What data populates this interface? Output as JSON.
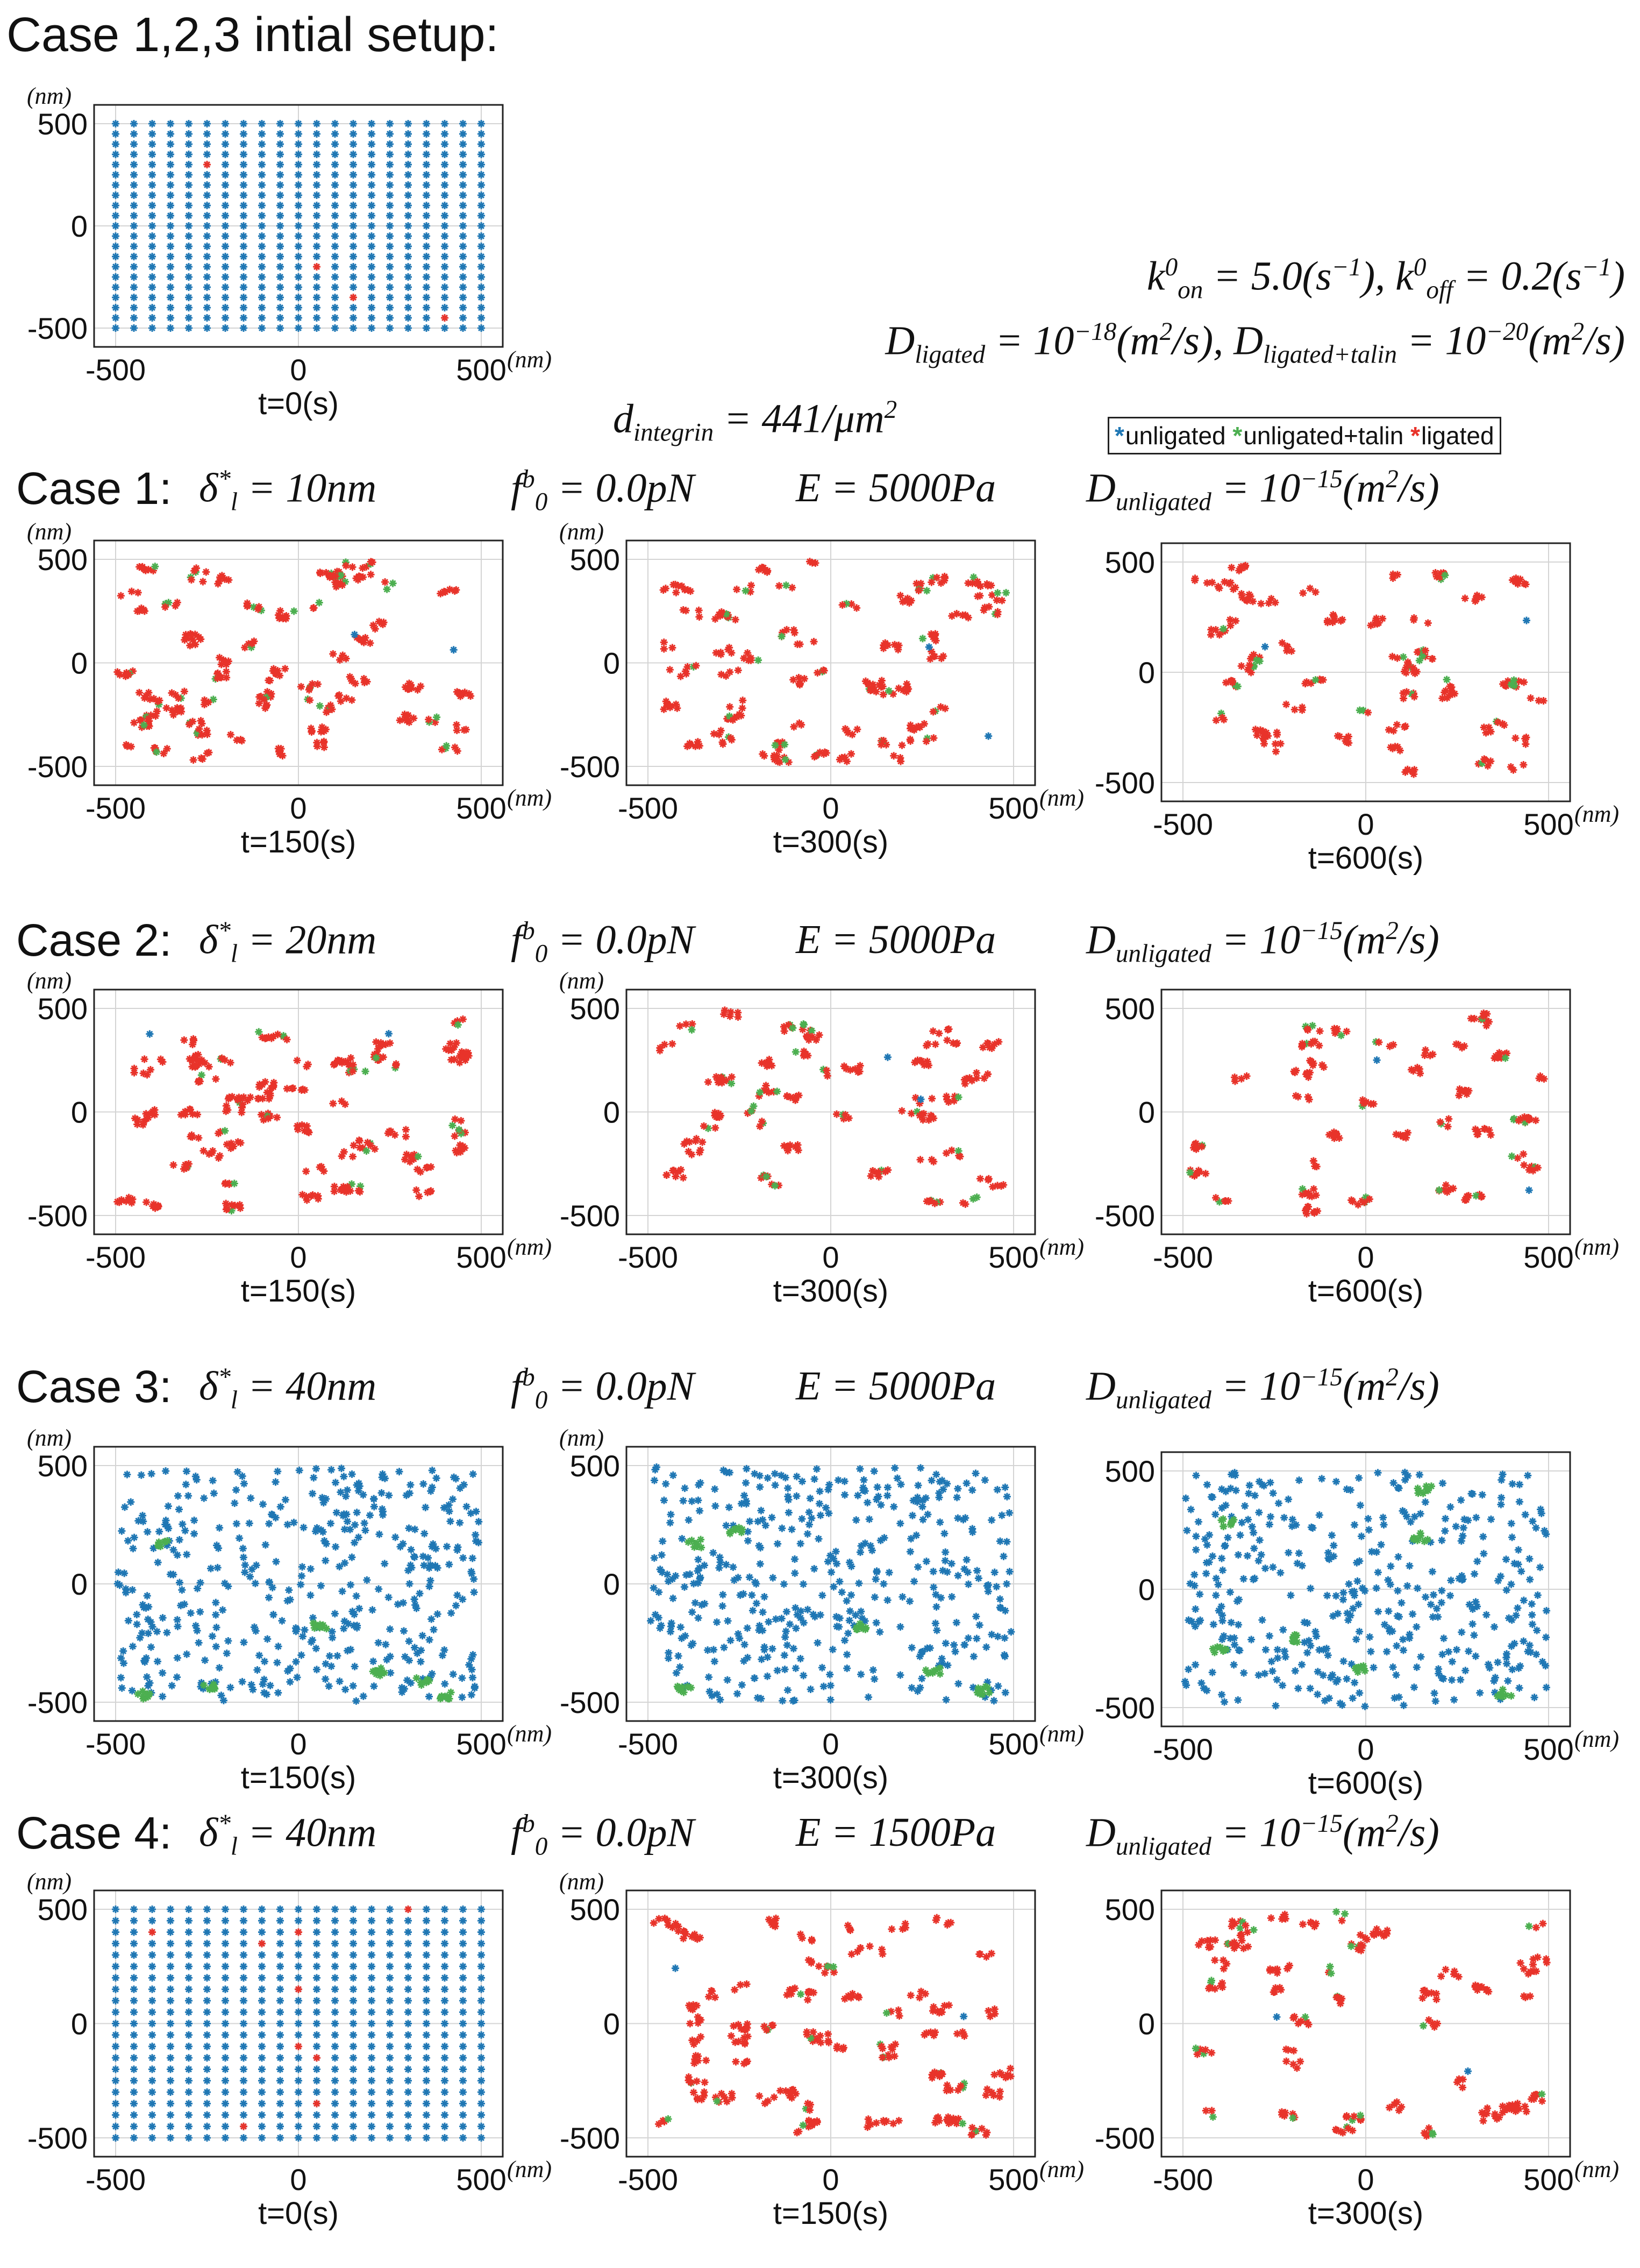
{
  "figure": {
    "title": "Case 1,2,3 intial setup:",
    "params": {
      "rates": {
        "k_on": "k",
        "k_on_sup": "0",
        "k_on_sub": "on",
        "k_on_val": " = 5.0(s",
        "k_on_exp": "−1",
        "k_on_tail": "), ",
        "k_off": "k",
        "k_off_sup": "0",
        "k_off_sub": "off",
        "k_off_val": " = 0.2(s",
        "k_off_exp": "−1",
        "k_off_tail": ")"
      },
      "diffusion": {
        "d_lig": "D",
        "d_lig_sub": "ligated",
        "d_lig_val": " = 10",
        "d_lig_exp": "−18",
        "d_lig_tail": "(m",
        "d_lig_tail_exp": "2",
        "d_lig_tail2": "/s), ",
        "d_lt": "D",
        "d_lt_sub": "ligated+talin",
        "d_lt_val": " = 10",
        "d_lt_exp": "−20",
        "d_lt_tail": "(m",
        "d_lt_tail_exp": "2",
        "d_lt_tail2": "/s)"
      },
      "density": {
        "name": "d",
        "sub": "integrin",
        "val": " = 441/μm",
        "exp": "2"
      }
    },
    "legend": [
      {
        "label": "unligated",
        "color": "#1f77b4",
        "mark": "*"
      },
      {
        "label": "unligated+talin",
        "color": "#4caf50",
        "mark": "*"
      },
      {
        "label": "ligated",
        "color": "#e8332a",
        "mark": "*"
      }
    ],
    "cases": [
      {
        "label": "Case 1:",
        "delta": "δ",
        "delta_sup": "*",
        "delta_sub": "l",
        "delta_val": " = 10nm",
        "f": "f",
        "f_sup": "b",
        "f_sub": "0",
        "f_val": " = 0.0pN",
        "E": "E = 5000Pa",
        "D": "D",
        "D_sub": "unligated",
        "D_val": " = 10",
        "D_exp": "−15",
        "D_tail": "(m",
        "D_tail_exp": "2",
        "D_tail2": "/s)"
      },
      {
        "label": "Case 2:",
        "delta": "δ",
        "delta_sup": "*",
        "delta_sub": "l",
        "delta_val": " = 20nm",
        "f": "f",
        "f_sup": "b",
        "f_sub": "0",
        "f_val": " = 0.0pN",
        "E": "E = 5000Pa",
        "D": "D",
        "D_sub": "unligated",
        "D_val": " = 10",
        "D_exp": "−15",
        "D_tail": "(m",
        "D_tail_exp": "2",
        "D_tail2": "/s)"
      },
      {
        "label": "Case 3:",
        "delta": "δ",
        "delta_sup": "*",
        "delta_sub": "l",
        "delta_val": " = 40nm",
        "f": "f",
        "f_sup": "b",
        "f_sub": "0",
        "f_val": " = 0.0pN",
        "E": "E = 5000Pa",
        "D": "D",
        "D_sub": "unligated",
        "D_val": " = 10",
        "D_exp": "−15",
        "D_tail": "(m",
        "D_tail_exp": "2",
        "D_tail2": "/s)"
      },
      {
        "label": "Case 4:",
        "delta": "δ",
        "delta_sup": "*",
        "delta_sub": "l",
        "delta_val": " = 40nm",
        "f": "f",
        "f_sup": "b",
        "f_sub": "0",
        "f_val": " = 0.0pN",
        "E": "E = 1500Pa",
        "D": "D",
        "D_sub": "unligated",
        "D_val": " = 10",
        "D_exp": "−15",
        "D_tail": "(m",
        "D_tail_exp": "2",
        "D_tail2": "/s)"
      }
    ]
  },
  "chart_data": [
    {
      "type": "scatter",
      "panel": "initial",
      "caption": "t=0(s)",
      "pattern": "grid",
      "xlim": [
        -500,
        500
      ],
      "ylim": [
        -500,
        500
      ],
      "xticks": [
        -500,
        0,
        500
      ],
      "yticks": [
        -500,
        0,
        500
      ],
      "xticklabels": [
        "-500",
        "0",
        "500"
      ],
      "yticklabels": [
        "-500",
        "0",
        "500"
      ],
      "grid": true,
      "xunit": "(nm)",
      "yunit": "(nm)",
      "grid_spacing": 50,
      "ligated_points": [
        [
          -250,
          300
        ],
        [
          50,
          -200
        ],
        [
          150,
          -350
        ],
        [
          400,
          -450
        ]
      ],
      "seed": 11
    },
    {
      "type": "scatter",
      "panel": "case1-t150",
      "caption": "t=150(s)",
      "pattern": "clusters-red",
      "xlim": [
        -500,
        500
      ],
      "ylim": [
        -500,
        500
      ],
      "xticks": [
        -500,
        0,
        500
      ],
      "yticks": [
        -500,
        0,
        500
      ],
      "xticklabels": [
        "-500",
        "0",
        "500"
      ],
      "yticklabels": [
        "-500",
        "0",
        "500"
      ],
      "grid": true,
      "xunit": "(nm)",
      "yunit": "(nm)",
      "clusters": 60,
      "seed": 101
    },
    {
      "type": "scatter",
      "panel": "case1-t300",
      "caption": "t=300(s)",
      "pattern": "clusters-red",
      "xlim": [
        -500,
        500
      ],
      "ylim": [
        -500,
        500
      ],
      "xticks": [
        -500,
        0,
        500
      ],
      "yticks": [
        -500,
        0,
        500
      ],
      "xticklabels": [
        "-500",
        "0",
        "500"
      ],
      "yticklabels": [
        "-500",
        "0",
        "500"
      ],
      "grid": true,
      "xunit": "(nm)",
      "yunit": "(nm)",
      "clusters": 55,
      "seed": 102
    },
    {
      "type": "scatter",
      "panel": "case1-t600",
      "caption": "t=600(s)",
      "pattern": "clusters-red",
      "xlim": [
        -500,
        500
      ],
      "ylim": [
        -500,
        500
      ],
      "xticks": [
        -500,
        0,
        500
      ],
      "yticks": [
        -500,
        0,
        500
      ],
      "xticklabels": [
        "-500",
        "0",
        "500"
      ],
      "yticklabels": [
        "-500",
        "0",
        "500"
      ],
      "grid": true,
      "xunit": "(nm)",
      "yunit": "",
      "clusters": 45,
      "seed": 103
    },
    {
      "type": "scatter",
      "panel": "case2-t150",
      "caption": "t=150(s)",
      "pattern": "clusters-red",
      "xlim": [
        -500,
        500
      ],
      "ylim": [
        -500,
        500
      ],
      "xticks": [
        -500,
        0,
        500
      ],
      "yticks": [
        -500,
        0,
        500
      ],
      "xticklabels": [
        "-500",
        "0",
        "500"
      ],
      "yticklabels": [
        "-500",
        "0",
        "500"
      ],
      "grid": true,
      "xunit": "(nm)",
      "yunit": "(nm)",
      "clusters": 55,
      "seed": 201
    },
    {
      "type": "scatter",
      "panel": "case2-t300",
      "caption": "t=300(s)",
      "pattern": "clusters-red",
      "xlim": [
        -500,
        500
      ],
      "ylim": [
        -500,
        500
      ],
      "xticks": [
        -500,
        0,
        500
      ],
      "yticks": [
        -500,
        0,
        500
      ],
      "xticklabels": [
        "-500",
        "0",
        "500"
      ],
      "yticklabels": [
        "-500",
        "0",
        "500"
      ],
      "grid": true,
      "xunit": "(nm)",
      "yunit": "(nm)",
      "clusters": 45,
      "seed": 202
    },
    {
      "type": "scatter",
      "panel": "case2-t600",
      "caption": "t=600(s)",
      "pattern": "clusters-red",
      "xlim": [
        -500,
        500
      ],
      "ylim": [
        -500,
        500
      ],
      "xticks": [
        -500,
        0,
        500
      ],
      "yticks": [
        -500,
        0,
        500
      ],
      "xticklabels": [
        "-500",
        "0",
        "500"
      ],
      "yticklabels": [
        "-500",
        "0",
        "500"
      ],
      "grid": true,
      "xunit": "(nm)",
      "yunit": "",
      "clusters": 35,
      "seed": 203
    },
    {
      "type": "scatter",
      "panel": "case3-t150",
      "caption": "t=150(s)",
      "pattern": "blue-random",
      "xlim": [
        -500,
        500
      ],
      "ylim": [
        -500,
        500
      ],
      "xticks": [
        -500,
        0,
        500
      ],
      "yticks": [
        -500,
        0,
        500
      ],
      "xticklabels": [
        "-500",
        "0",
        "500"
      ],
      "yticklabels": [
        "-500",
        "0",
        "500"
      ],
      "grid": true,
      "xunit": "(nm)",
      "yunit": "(nm)",
      "points": 420,
      "green_clusters": [
        [
          -370,
          170
        ],
        [
          60,
          -180
        ],
        [
          -240,
          -430
        ],
        [
          220,
          -370
        ],
        [
          340,
          -410
        ],
        [
          400,
          -470
        ],
        [
          -420,
          -470
        ]
      ],
      "seed": 301
    },
    {
      "type": "scatter",
      "panel": "case3-t300",
      "caption": "t=300(s)",
      "pattern": "blue-random",
      "xlim": [
        -500,
        500
      ],
      "ylim": [
        -500,
        500
      ],
      "xticks": [
        -500,
        0,
        500
      ],
      "yticks": [
        -500,
        0,
        500
      ],
      "xticklabels": [
        "-500",
        "0",
        "500"
      ],
      "yticklabels": [
        "-500",
        "0",
        "500"
      ],
      "grid": true,
      "xunit": "(nm)",
      "yunit": "(nm)",
      "points": 420,
      "green_clusters": [
        [
          -370,
          170
        ],
        [
          -260,
          220
        ],
        [
          80,
          -180
        ],
        [
          -400,
          -450
        ],
        [
          280,
          -370
        ],
        [
          420,
          -450
        ]
      ],
      "seed": 302
    },
    {
      "type": "scatter",
      "panel": "case3-t600",
      "caption": "t=600(s)",
      "pattern": "blue-random",
      "xlim": [
        -500,
        500
      ],
      "ylim": [
        -500,
        500
      ],
      "xticks": [
        -500,
        0,
        500
      ],
      "yticks": [
        -500,
        0,
        500
      ],
      "xticklabels": [
        "-500",
        "0",
        "500"
      ],
      "yticklabels": [
        "-500",
        "0",
        "500"
      ],
      "grid": true,
      "xunit": "(nm)",
      "yunit": "",
      "points": 400,
      "green_clusters": [
        [
          -380,
          280
        ],
        [
          160,
          420
        ],
        [
          150,
          220
        ],
        [
          -200,
          -210
        ],
        [
          -400,
          -250
        ],
        [
          -10,
          -340
        ],
        [
          380,
          -440
        ]
      ],
      "seed": 303
    },
    {
      "type": "scatter",
      "panel": "case4-t0",
      "caption": "t=0(s)",
      "pattern": "grid",
      "xlim": [
        -500,
        500
      ],
      "ylim": [
        -500,
        500
      ],
      "xticks": [
        -500,
        0,
        500
      ],
      "yticks": [
        -500,
        0,
        500
      ],
      "xticklabels": [
        "-500",
        "0",
        "500"
      ],
      "yticklabels": [
        "-500",
        "0",
        "500"
      ],
      "grid": true,
      "xunit": "(nm)",
      "yunit": "(nm)",
      "grid_spacing": 50,
      "ligated_points": [
        [
          -400,
          400
        ],
        [
          -100,
          350
        ],
        [
          0,
          400
        ],
        [
          0,
          150
        ],
        [
          300,
          500
        ],
        [
          0,
          -100
        ],
        [
          50,
          -150
        ],
        [
          50,
          -350
        ],
        [
          -150,
          -450
        ]
      ],
      "seed": 12
    },
    {
      "type": "scatter",
      "panel": "case4-t150",
      "caption": "t=150(s)",
      "pattern": "clusters-red",
      "xlim": [
        -500,
        500
      ],
      "ylim": [
        -500,
        500
      ],
      "xticks": [
        -500,
        0,
        500
      ],
      "yticks": [
        -500,
        0,
        500
      ],
      "xticklabels": [
        "-500",
        "0",
        "500"
      ],
      "yticklabels": [
        "-500",
        "0",
        "500"
      ],
      "grid": true,
      "xunit": "(nm)",
      "yunit": "(nm)",
      "clusters": 55,
      "seed": 401
    },
    {
      "type": "scatter",
      "panel": "case4-t300",
      "caption": "t=300(s)",
      "pattern": "clusters-red",
      "xlim": [
        -500,
        500
      ],
      "ylim": [
        -500,
        500
      ],
      "xticks": [
        -500,
        0,
        500
      ],
      "yticks": [
        -500,
        0,
        500
      ],
      "xticklabels": [
        "-500",
        "0",
        "500"
      ],
      "yticklabels": [
        "-500",
        "0",
        "500"
      ],
      "grid": true,
      "xunit": "(nm)",
      "yunit": "",
      "clusters": 45,
      "seed": 402
    }
  ]
}
